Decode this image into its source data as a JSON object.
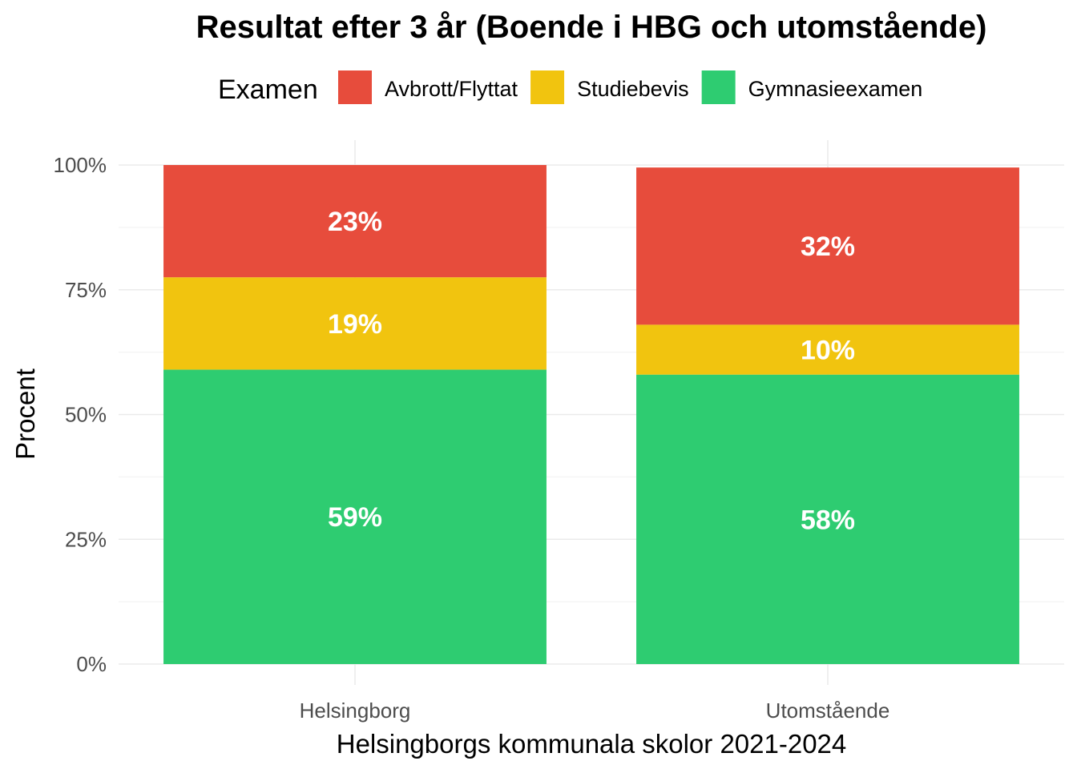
{
  "chart_data": {
    "type": "bar",
    "stacked": true,
    "title": "Resultat efter 3 år (Boende i HBG och utomstående)",
    "xlabel": "Helsingborgs kommunala skolor 2021-2024",
    "ylabel": "Procent",
    "ylim": [
      0,
      100
    ],
    "y_ticks": [
      "0%",
      "25%",
      "50%",
      "75%",
      "100%"
    ],
    "y_tick_values": [
      0,
      25,
      50,
      75,
      100
    ],
    "categories": [
      "Helsingborg",
      "Utomstående"
    ],
    "legend": {
      "title": "Examen",
      "position": "top"
    },
    "grid": true,
    "series": [
      {
        "name": "Gymnasieexamen",
        "color": "#2ecc71",
        "values": [
          59,
          58
        ],
        "labels": [
          "59%",
          "58%"
        ]
      },
      {
        "name": "Studiebevis",
        "color": "#f1c40f",
        "values": [
          18.5,
          10
        ],
        "labels": [
          "19%",
          "10%"
        ]
      },
      {
        "name": "Avbrott/Flyttat",
        "color": "#e74c3c",
        "values": [
          22.5,
          31.5
        ],
        "labels": [
          "23%",
          "32%"
        ]
      }
    ],
    "legend_order": [
      "Avbrott/Flyttat",
      "Studiebevis",
      "Gymnasieexamen"
    ]
  }
}
